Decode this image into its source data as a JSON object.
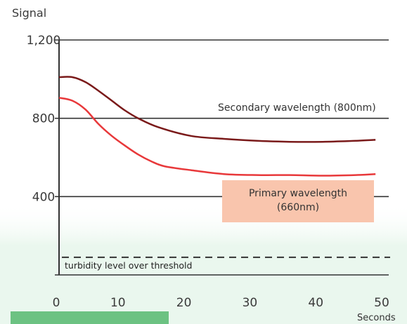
{
  "chart_data": {
    "type": "line",
    "ylabel": "Signal",
    "xlabel": "Seconds",
    "xlim": [
      0,
      50
    ],
    "ylim": [
      0,
      1200
    ],
    "x_ticks": [
      "0",
      "10",
      "20",
      "30",
      "40",
      "50"
    ],
    "y_ticks": [
      "400",
      "800",
      "1,200"
    ],
    "y_tick_values": [
      400,
      800,
      1200
    ],
    "x_tick_values": [
      0,
      10,
      20,
      30,
      40,
      50
    ],
    "grid": "horizontal",
    "series": [
      {
        "name": "Secondary wavelength (800nm)",
        "color": "#7a1a1a",
        "x": [
          0,
          2,
          4,
          6,
          8,
          10,
          12,
          15,
          20,
          25,
          30,
          35,
          40,
          45,
          48
        ],
        "values": [
          1010,
          1010,
          985,
          940,
          890,
          840,
          800,
          755,
          710,
          695,
          685,
          680,
          680,
          685,
          690
        ]
      },
      {
        "name": "Primary wavelength (660nm)",
        "color": "#e8383a",
        "x": [
          0,
          2,
          4,
          6,
          8,
          10,
          12,
          14,
          16,
          20,
          25,
          30,
          35,
          40,
          45,
          48
        ],
        "values": [
          905,
          890,
          845,
          770,
          710,
          660,
          615,
          580,
          555,
          535,
          515,
          510,
          510,
          507,
          510,
          515
        ]
      }
    ],
    "annotations": {
      "secondary_label": "Secondary wavelength (800nm)",
      "primary_label_line1": "Primary wavelength",
      "primary_label_line2": "(660nm)",
      "threshold_label": "turbidity level over threshold",
      "threshold_value": 90,
      "primary_box_color": "#f9c5ad",
      "band_color": "#eaf7ee",
      "bar_color": "#6cc282"
    }
  }
}
